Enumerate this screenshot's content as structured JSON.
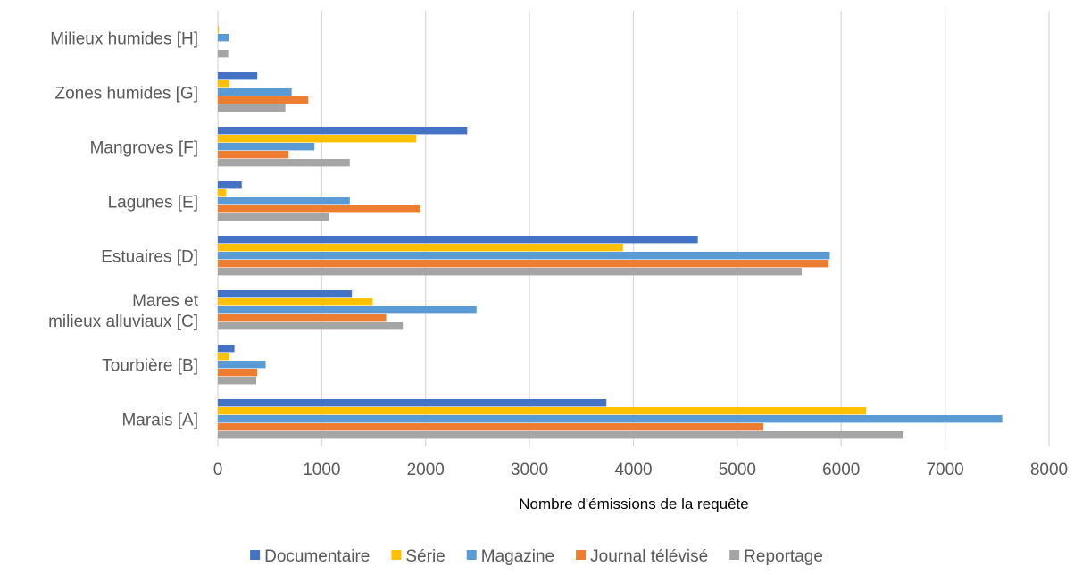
{
  "chart_data": {
    "type": "bar",
    "orientation": "horizontal",
    "categories": [
      "Marais [A]",
      "Tourbière [B]",
      "Mares et\nmilieux alluviaux [C]",
      "Estuaires [D]",
      "Lagunes [E]",
      "Mangroves [F]",
      "Zones humides [G]",
      "Milieux humides [H]"
    ],
    "series": [
      {
        "name": "Documentaire",
        "color": "#4472C4",
        "values": [
          3740,
          160,
          1290,
          4620,
          230,
          2400,
          380,
          0
        ]
      },
      {
        "name": "Série",
        "color": "#FFC000",
        "values": [
          6240,
          110,
          1490,
          3900,
          80,
          1910,
          110,
          10
        ]
      },
      {
        "name": "Magazine",
        "color": "#5B9BD5",
        "values": [
          7550,
          460,
          2490,
          5890,
          1270,
          930,
          710,
          110
        ]
      },
      {
        "name": "Journal télévisé",
        "color": "#ED7D31",
        "values": [
          5250,
          380,
          1620,
          5880,
          1950,
          680,
          870,
          0
        ]
      },
      {
        "name": "Reportage",
        "color": "#A5A5A5",
        "values": [
          6600,
          370,
          1780,
          5620,
          1070,
          1270,
          650,
          100
        ]
      }
    ],
    "xlim": [
      0,
      8000
    ],
    "xticks": [
      0,
      1000,
      2000,
      3000,
      4000,
      5000,
      6000,
      7000,
      8000
    ],
    "xlabel": "Nombre d'émissions de la requête",
    "ylabel": "",
    "title": "",
    "grid": "vertical",
    "legend_position": "bottom"
  }
}
